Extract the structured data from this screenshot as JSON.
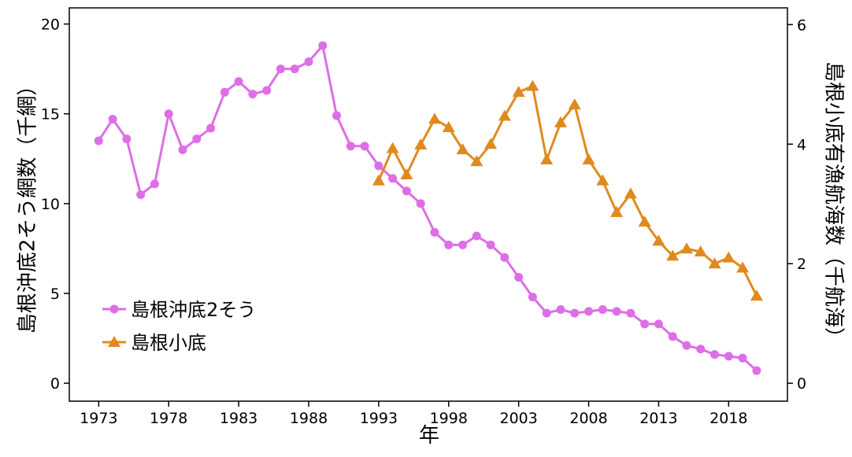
{
  "chart_data": {
    "type": "line",
    "xlabel": "年",
    "ylabel": "島根沖底2そう網数（千網）",
    "y2label": "島根小底有漁航海数（千航海）",
    "xlim": [
      1970.9,
      2022.2
    ],
    "xticks": [
      1973,
      1978,
      1983,
      1988,
      1993,
      1998,
      2003,
      2008,
      2013,
      2018
    ],
    "ylim": [
      -1.0,
      20.9
    ],
    "yticks": [
      0,
      5,
      10,
      15,
      20
    ],
    "y2lim": [
      -0.3,
      6.28
    ],
    "y2ticks": [
      0,
      2,
      4,
      6
    ],
    "legend": "bottom-left",
    "series": [
      {
        "name": "島根沖底2そう",
        "color": "#dd6ee6",
        "marker": "circle",
        "x": [
          1973,
          1974,
          1975,
          1976,
          1977,
          1978,
          1979,
          1980,
          1981,
          1982,
          1983,
          1984,
          1985,
          1986,
          1987,
          1988,
          1989,
          1990,
          1991,
          1992,
          1993,
          1994,
          1995,
          1996,
          1997,
          1998,
          1999,
          2000,
          2001,
          2002,
          2003,
          2004,
          2005,
          2006,
          2007,
          2008,
          2009,
          2010,
          2011,
          2012,
          2013,
          2014,
          2015,
          2016,
          2017,
          2018,
          2019,
          2020
        ],
        "values": [
          13.5,
          14.7,
          13.6,
          10.5,
          11.1,
          15.0,
          13.0,
          13.6,
          14.2,
          16.2,
          16.8,
          16.1,
          16.3,
          17.5,
          17.5,
          17.9,
          18.8,
          14.9,
          13.2,
          13.2,
          12.1,
          11.4,
          10.7,
          10.0,
          8.4,
          7.7,
          7.7,
          8.2,
          7.7,
          7.0,
          5.9,
          4.8,
          3.9,
          4.1,
          3.9,
          4.0,
          4.1,
          4.0,
          3.9,
          3.3,
          3.3,
          2.6,
          2.1,
          1.9,
          1.6,
          1.5,
          1.4,
          0.7
        ]
      },
      {
        "name": "島根小底",
        "color": "#e08a1e",
        "marker": "triangle",
        "axis": "y2",
        "x": [
          1993,
          1994,
          1995,
          1996,
          1997,
          1998,
          1999,
          2000,
          2001,
          2002,
          2003,
          2004,
          2005,
          2006,
          2007,
          2008,
          2009,
          2010,
          2011,
          2012,
          2013,
          2014,
          2015,
          2016,
          2017,
          2018,
          2019,
          2020
        ],
        "values": [
          3.39,
          3.93,
          3.49,
          3.99,
          4.42,
          4.28,
          3.91,
          3.71,
          4.0,
          4.47,
          4.87,
          4.97,
          3.74,
          4.36,
          4.66,
          3.74,
          3.39,
          2.86,
          3.17,
          2.7,
          2.38,
          2.13,
          2.25,
          2.2,
          2.0,
          2.1,
          1.93,
          1.46
        ]
      }
    ]
  }
}
